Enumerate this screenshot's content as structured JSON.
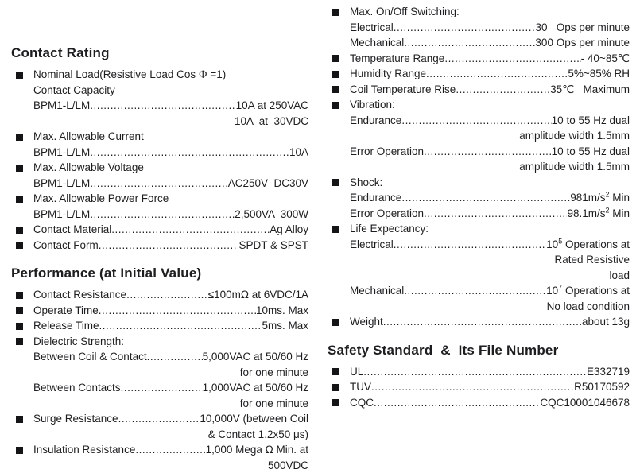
{
  "page": {
    "background": "#ffffff",
    "text_color": "#1e1e20",
    "bullet_color": "#151517",
    "leader_char": "."
  },
  "columns": [
    {
      "blocks": [
        {
          "heading": "Contact Rating",
          "lines": [
            {
              "bullet": true,
              "label": "Nominal Load(Resistive Load Cos Φ =1)"
            },
            {
              "label": "Contact Capacity"
            },
            {
              "label": "BPM1-L/LM",
              "dots": true,
              "value": [
                {
                  "t": "10A at 250VAC"
                }
              ]
            },
            {
              "cont": true,
              "value": [
                {
                  "t": "10A  at  30VDC"
                }
              ]
            },
            {
              "bullet": true,
              "label": "Max. Allowable Current"
            },
            {
              "label": "BPM1-L/LM",
              "dots": true,
              "value": [
                {
                  "t": "10A"
                }
              ]
            },
            {
              "bullet": true,
              "label": "Max. Allowable Voltage"
            },
            {
              "label": "BPM1-L/LM",
              "dots": true,
              "value": [
                {
                  "t": "AC250V  DC30V"
                }
              ]
            },
            {
              "bullet": true,
              "label": "Max. Allowable Power Force"
            },
            {
              "label": "BPM1-L/LM",
              "dots": true,
              "value": [
                {
                  "t": "2,500VA  300W"
                }
              ]
            },
            {
              "bullet": true,
              "label": "Contact Material",
              "dots": true,
              "value": [
                {
                  "t": "Ag Alloy"
                }
              ]
            },
            {
              "bullet": true,
              "label": "Contact Form",
              "dots": true,
              "value": [
                {
                  "t": "SPDT & SPST"
                }
              ]
            }
          ]
        },
        {
          "heading": "Performance (at Initial Value)",
          "lines": [
            {
              "bullet": true,
              "label": "Contact Resistance",
              "dots": true,
              "value": [
                {
                  "t": "≤100mΩ at 6VDC/1A"
                }
              ]
            },
            {
              "bullet": true,
              "label": "Operate Time",
              "dots": true,
              "value": [
                {
                  "t": "10ms. Max"
                }
              ]
            },
            {
              "bullet": true,
              "label": "Release Time",
              "dots": true,
              "value": [
                {
                  "t": "5ms. Max"
                }
              ]
            },
            {
              "bullet": true,
              "label": "Dielectric Strength:"
            },
            {
              "label": "Between Coil & Contact",
              "dots": true,
              "value": [
                {
                  "t": "5,000VAC at 50/60 Hz"
                }
              ]
            },
            {
              "cont": true,
              "value": [
                {
                  "t": "for one minute"
                }
              ]
            },
            {
              "label": "Between Contacts",
              "dots": true,
              "value": [
                {
                  "t": "1,000VAC at 50/60 Hz"
                }
              ]
            },
            {
              "cont": true,
              "value": [
                {
                  "t": "for one minute"
                }
              ]
            },
            {
              "bullet": true,
              "label": "Surge Resistance",
              "dots": true,
              "value": [
                {
                  "t": "10,000V (between Coil"
                }
              ]
            },
            {
              "cont": true,
              "value": [
                {
                  "t": "& Contact 1.2x50 μs)"
                }
              ]
            },
            {
              "bullet": true,
              "label": "Insulation Resistance",
              "dots": true,
              "value": [
                {
                  "t": "1,000 Mega Ω Min. at"
                }
              ]
            },
            {
              "cont": true,
              "value": [
                {
                  "t": "500VDC"
                }
              ]
            }
          ]
        }
      ]
    },
    {
      "blocks": [
        {
          "heading": "",
          "lines": [
            {
              "bullet": true,
              "label": "Max. On/Off Switching:"
            },
            {
              "label": "Electrical",
              "dots": true,
              "value": [
                {
                  "t": "30   Ops per minute"
                }
              ]
            },
            {
              "label": "Mechanical",
              "dots": true,
              "value": [
                {
                  "t": "300 Ops per minute"
                }
              ]
            },
            {
              "bullet": true,
              "label": "Temperature Range",
              "dots": true,
              "value": [
                {
                  "t": "- 40~85℃"
                }
              ]
            },
            {
              "bullet": true,
              "label": "Humidity Range",
              "dots": true,
              "value": [
                {
                  "t": "5%~85% RH"
                }
              ]
            },
            {
              "bullet": true,
              "label": "Coil Temperature Rise",
              "dots": true,
              "value": [
                {
                  "t": "35℃   Maximum"
                }
              ]
            },
            {
              "bullet": true,
              "label": "Vibration:"
            },
            {
              "label": "Endurance",
              "dots": true,
              "value": [
                {
                  "t": "10 to 55 Hz dual"
                }
              ]
            },
            {
              "cont": true,
              "value": [
                {
                  "t": "amplitude width 1.5mm"
                }
              ]
            },
            {
              "label": "Error Operation",
              "dots": true,
              "value": [
                {
                  "t": "10 to 55 Hz dual"
                }
              ]
            },
            {
              "cont": true,
              "value": [
                {
                  "t": "amplitude width 1.5mm"
                }
              ]
            },
            {
              "bullet": true,
              "label": "Shock:"
            },
            {
              "label": "Endurance",
              "dots": true,
              "value": [
                {
                  "t": "981m/s"
                },
                {
                  "t": "2",
                  "sup": true
                },
                {
                  "t": " Min"
                }
              ]
            },
            {
              "label": "Error Operation",
              "dots": true,
              "value": [
                {
                  "t": "98.1m/s"
                },
                {
                  "t": "2",
                  "sup": true
                },
                {
                  "t": " Min"
                }
              ]
            },
            {
              "bullet": true,
              "label": "Life Expectancy:"
            },
            {
              "label": "Electrical",
              "dots": true,
              "value": [
                {
                  "t": "10"
                },
                {
                  "t": "5",
                  "sup": true
                },
                {
                  "t": " Operations at"
                }
              ]
            },
            {
              "cont": true,
              "value": [
                {
                  "t": "Rated Resistive"
                }
              ]
            },
            {
              "cont": true,
              "value": [
                {
                  "t": "load"
                }
              ]
            },
            {
              "label": "Mechanical",
              "dots": true,
              "value": [
                {
                  "t": "10"
                },
                {
                  "t": "7",
                  "sup": true
                },
                {
                  "t": " Operations at"
                }
              ]
            },
            {
              "cont": true,
              "value": [
                {
                  "t": "No load condition"
                }
              ]
            },
            {
              "bullet": true,
              "label": "Weight",
              "dots": true,
              "value": [
                {
                  "t": "about 13g"
                }
              ]
            }
          ]
        },
        {
          "heading": "Safety Standard  &  Its File Number",
          "lines": [
            {
              "bullet": true,
              "label": "UL",
              "dots": true,
              "value": [
                {
                  "t": "E332719"
                }
              ]
            },
            {
              "bullet": true,
              "label": "TUV",
              "dots": true,
              "value": [
                {
                  "t": "R50170592"
                }
              ]
            },
            {
              "bullet": true,
              "label": "CQC",
              "dots": true,
              "value": [
                {
                  "t": "CQC10001046678"
                }
              ]
            }
          ]
        }
      ]
    }
  ]
}
